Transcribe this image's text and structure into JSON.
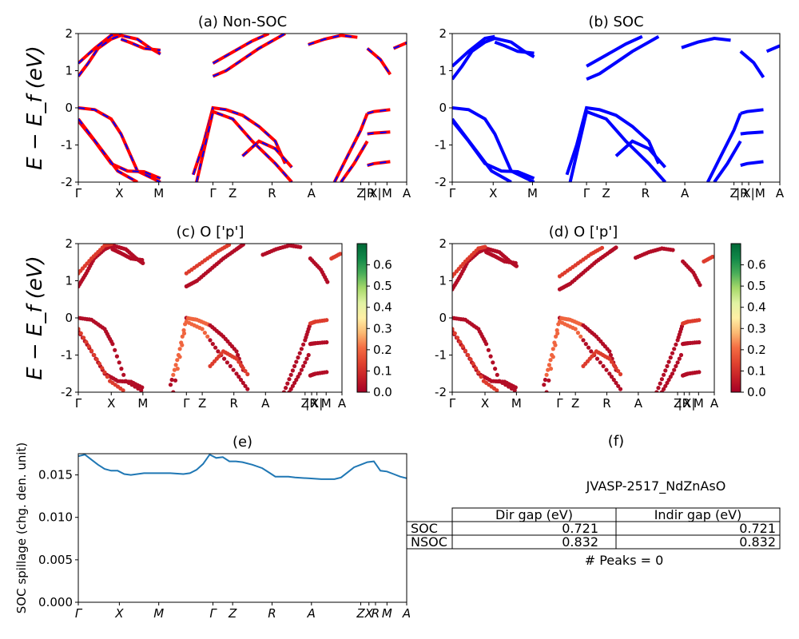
{
  "chart_data": [
    {
      "type": "line",
      "title": "(a) Non-SOC",
      "ylabel": "E − E_f (eV)",
      "ylim": [
        -2,
        2
      ],
      "yticks": [
        -2,
        -1,
        0,
        1,
        2
      ],
      "kpath": [
        "Γ",
        "X",
        "M",
        "Γ",
        "Z",
        "R",
        "A",
        "Z",
        "|R",
        "X|",
        "M",
        "A"
      ],
      "series": [
        {
          "color": "#ff0000",
          "style": "solid",
          "bands": [
            {
              "x": [
                0,
                0.03,
                0.06,
                0.1,
                0.13,
                0.18,
                0.22,
                0.25
              ],
              "y": [
                0.85,
                1.2,
                1.6,
                1.85,
                1.95,
                1.85,
                1.6,
                1.45
              ]
            },
            {
              "x": [
                0,
                0.05,
                0.1,
                0.13
              ],
              "y": [
                1.2,
                1.6,
                1.95,
                2.0
              ]
            },
            {
              "x": [
                0.13,
                0.16,
                0.2,
                0.25
              ],
              "y": [
                1.85,
                1.75,
                1.6,
                1.55
              ]
            },
            {
              "x": [
                0.41,
                0.45,
                0.5,
                0.55,
                0.6,
                0.63
              ],
              "y": [
                0.85,
                1.0,
                1.3,
                1.6,
                1.85,
                2.0
              ]
            },
            {
              "x": [
                0.41,
                0.47,
                0.53,
                0.58
              ],
              "y": [
                1.2,
                1.5,
                1.8,
                2.0
              ]
            },
            {
              "x": [
                0.7,
                0.75,
                0.8,
                0.85
              ],
              "y": [
                1.7,
                1.85,
                1.95,
                1.9
              ]
            },
            {
              "x": [
                0.88,
                0.92,
                0.95
              ],
              "y": [
                1.6,
                1.3,
                0.9
              ]
            },
            {
              "x": [
                0.96,
                1.0
              ],
              "y": [
                1.6,
                1.75
              ]
            },
            {
              "x": [
                0,
                0.05,
                0.1,
                0.13,
                0.18,
                0.25
              ],
              "y": [
                0,
                -0.05,
                -0.3,
                -0.7,
                -1.7,
                -2.0
              ]
            },
            {
              "x": [
                0,
                0.05,
                0.1,
                0.15,
                0.2,
                0.25
              ],
              "y": [
                -0.35,
                -0.9,
                -1.5,
                -1.7,
                -1.72,
                -1.9
              ]
            },
            {
              "x": [
                0,
                0.06,
                0.12,
                0.18
              ],
              "y": [
                -0.3,
                -1.0,
                -1.7,
                -2.0
              ]
            },
            {
              "x": [
                0.35,
                0.38,
                0.41,
                0.45,
                0.5,
                0.55,
                0.6,
                0.63
              ],
              "y": [
                -1.8,
                -1.0,
                0.0,
                -0.05,
                -0.2,
                -0.5,
                -0.9,
                -1.5
              ]
            },
            {
              "x": [
                0.36,
                0.41,
                0.47,
                0.53,
                0.6,
                0.65
              ],
              "y": [
                -2.0,
                -0.1,
                -0.3,
                -0.9,
                -1.5,
                -2.0
              ]
            },
            {
              "x": [
                0.5,
                0.55,
                0.6,
                0.65
              ],
              "y": [
                -1.3,
                -0.9,
                -1.1,
                -1.6
              ]
            },
            {
              "x": [
                0.78,
                0.82,
                0.86,
                0.88
              ],
              "y": [
                -2.0,
                -1.3,
                -0.6,
                -0.15
              ]
            },
            {
              "x": [
                0.8,
                0.84,
                0.88
              ],
              "y": [
                -2.0,
                -1.5,
                -0.9
              ]
            },
            {
              "x": [
                0.88,
                0.9,
                0.95
              ],
              "y": [
                -0.15,
                -0.1,
                -0.05
              ]
            },
            {
              "x": [
                0.88,
                0.9,
                0.95
              ],
              "y": [
                -0.7,
                -0.68,
                -0.65
              ]
            },
            {
              "x": [
                0.88,
                0.9,
                0.95
              ],
              "y": [
                -1.55,
                -1.5,
                -1.45
              ]
            }
          ]
        },
        {
          "color": "#0000ff",
          "style": "dashed",
          "bands": "same as red"
        }
      ]
    },
    {
      "type": "line",
      "title": "(b) SOC",
      "ylim": [
        -2,
        2
      ],
      "yticks": [
        -2,
        -1,
        0,
        1,
        2
      ],
      "kpath": [
        "Γ",
        "X",
        "M",
        "Γ",
        "Z",
        "R",
        "A",
        "Z",
        "|R",
        "X|",
        "M",
        "A"
      ],
      "series": [
        {
          "color": "#0000ff",
          "bands": "similar to (a)"
        }
      ]
    },
    {
      "type": "scatter",
      "title": "(c)  O ['p']",
      "ylabel": "E − E_f (eV)",
      "ylim": [
        -2,
        2
      ],
      "yticks": [
        -2,
        -1,
        0,
        1,
        2
      ],
      "kpath": [
        "Γ",
        "X",
        "M",
        "Γ",
        "Z",
        "R",
        "A",
        "Z",
        "|R",
        "X|",
        "M",
        "A"
      ],
      "colorbar": {
        "cmap": "RdYlGn",
        "min": 0.0,
        "max": 0.7,
        "ticks": [
          "0.0",
          "0.1",
          "0.2",
          "0.3",
          "0.4",
          "0.5",
          "0.6"
        ]
      }
    },
    {
      "type": "scatter",
      "title": "(d) O ['p']",
      "ylim": [
        -2,
        2
      ],
      "yticks": [
        -2,
        -1,
        0,
        1,
        2
      ],
      "kpath": [
        "Γ",
        "X",
        "M",
        "Γ",
        "Z",
        "R",
        "A",
        "Z",
        "|R",
        "X|",
        "M",
        "A"
      ],
      "colorbar": {
        "cmap": "RdYlGn",
        "min": 0.0,
        "max": 0.7,
        "ticks": [
          "0.0",
          "0.1",
          "0.2",
          "0.3",
          "0.4",
          "0.5",
          "0.6"
        ]
      }
    },
    {
      "type": "line",
      "title": "(e)",
      "ylabel": "SOC spillage (chg. den. unit)",
      "ylim": [
        0.0,
        0.0175
      ],
      "yticks": [
        "0.000",
        "0.005",
        "0.010",
        "0.015"
      ],
      "xticks": [
        "Γ",
        "X",
        "M",
        "Γ",
        "Z",
        "R",
        "A",
        "Z",
        "X",
        "R",
        "M",
        "A"
      ],
      "series": [
        {
          "color": "#1f77b4",
          "x": [
            0,
            0.02,
            0.04,
            0.06,
            0.08,
            0.1,
            0.12,
            0.14,
            0.16,
            0.2,
            0.24,
            0.28,
            0.32,
            0.34,
            0.36,
            0.38,
            0.4,
            0.42,
            0.44,
            0.46,
            0.48,
            0.5,
            0.53,
            0.56,
            0.58,
            0.6,
            0.62,
            0.64,
            0.66,
            0.7,
            0.74,
            0.78,
            0.8,
            0.82,
            0.84,
            0.86,
            0.88,
            0.9,
            0.92,
            0.94,
            0.96,
            0.98,
            1.0
          ],
          "y": [
            0.0172,
            0.0174,
            0.0168,
            0.0162,
            0.0157,
            0.0155,
            0.0155,
            0.0151,
            0.015,
            0.0152,
            0.0152,
            0.0152,
            0.0151,
            0.0152,
            0.0156,
            0.0163,
            0.0174,
            0.017,
            0.0171,
            0.0166,
            0.0166,
            0.0165,
            0.0162,
            0.0158,
            0.0153,
            0.0148,
            0.0148,
            0.0148,
            0.0147,
            0.0146,
            0.0145,
            0.0145,
            0.0147,
            0.0153,
            0.0159,
            0.0162,
            0.0165,
            0.0166,
            0.0155,
            0.0154,
            0.0151,
            0.0148,
            0.0146
          ]
        }
      ]
    },
    {
      "type": "table",
      "title": "(f)",
      "subtitle": "JVASP-2517_NdZnAsO",
      "columns": [
        "Dir gap (eV)",
        "Indir gap (eV)"
      ],
      "rows": [
        {
          "label": "SOC",
          "values": [
            "0.721",
            "0.721"
          ]
        },
        {
          "label": "NSOC",
          "values": [
            "0.832",
            "0.832"
          ]
        }
      ],
      "footer": "# Peaks = 0"
    }
  ]
}
